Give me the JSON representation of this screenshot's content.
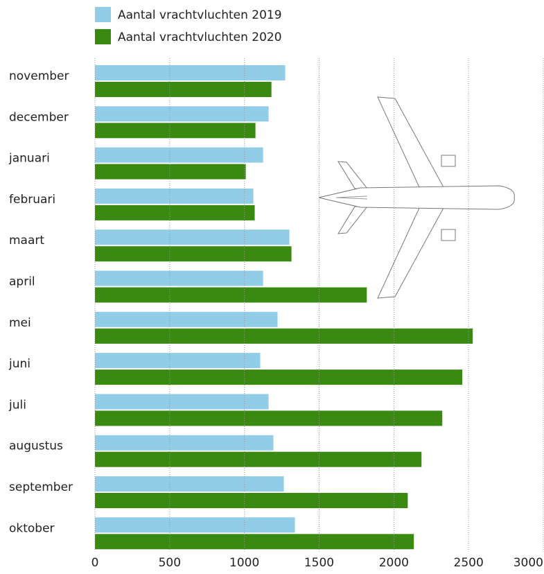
{
  "chart_data": {
    "type": "hbar",
    "categories": [
      "november",
      "december",
      "januari",
      "februari",
      "maart",
      "april",
      "mei",
      "juni",
      "juli",
      "augustus",
      "september",
      "oktober"
    ],
    "series": [
      {
        "name": "Aantal vrachtvluchten 2019",
        "color": "#92cde8",
        "values": [
          1273,
          1162,
          1125,
          1060,
          1301,
          1125,
          1222,
          1106,
          1162,
          1194,
          1264,
          1338
        ]
      },
      {
        "name": "Aantal vrachtvluchten 2020",
        "color": "#3a8a12",
        "values": [
          1181,
          1074,
          1009,
          1069,
          1315,
          1819,
          2528,
          2458,
          2324,
          2185,
          2093,
          2134
        ]
      }
    ],
    "xlim": [
      0,
      3000
    ],
    "xticks": [
      0,
      500,
      1000,
      1500,
      2000,
      2500,
      3000
    ],
    "grid": true
  }
}
